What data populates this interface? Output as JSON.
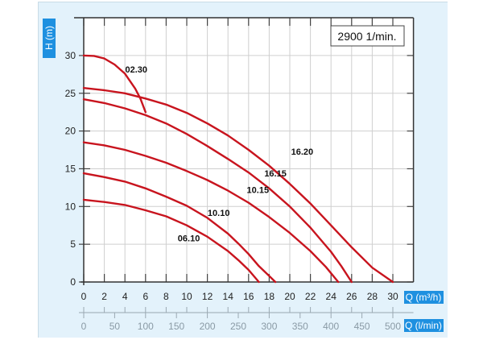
{
  "chart_data": {
    "type": "line",
    "title": "",
    "speed_label": "2900 1/min.",
    "ylabel": "H (m)",
    "xlabel": "Q (m³/h)",
    "x2label": "Q (l/min)",
    "xlim": [
      0,
      32
    ],
    "ylim": [
      0,
      35
    ],
    "x_ticks": [
      0,
      2,
      4,
      6,
      8,
      10,
      12,
      14,
      16,
      18,
      20,
      22,
      24,
      26,
      28,
      30
    ],
    "y_ticks": [
      0,
      5,
      10,
      15,
      20,
      25,
      30
    ],
    "x2_ticks": [
      0,
      50,
      100,
      150,
      200,
      250,
      300,
      350,
      400,
      450,
      500
    ],
    "grid": true,
    "line_color": "#c8141e",
    "series": [
      {
        "name": "02.30",
        "label_at": [
          5.1,
          28.2
        ],
        "points": [
          [
            0,
            30
          ],
          [
            1,
            29.95
          ],
          [
            2,
            29.6
          ],
          [
            3,
            28.8
          ],
          [
            4,
            27.6
          ],
          [
            5,
            25.6
          ],
          [
            5.5,
            24.3
          ],
          [
            6,
            22.5
          ]
        ]
      },
      {
        "name": "16.20",
        "label_at": [
          21.2,
          17.3
        ],
        "points": [
          [
            0,
            25.7
          ],
          [
            2,
            25.4
          ],
          [
            4,
            25
          ],
          [
            6,
            24.3
          ],
          [
            8,
            23.5
          ],
          [
            10,
            22.4
          ],
          [
            12,
            21
          ],
          [
            14,
            19.4
          ],
          [
            16,
            17.5
          ],
          [
            18,
            15.4
          ],
          [
            20,
            13
          ],
          [
            22,
            10.4
          ],
          [
            24,
            7.5
          ],
          [
            26,
            4.6
          ],
          [
            28,
            1.9
          ],
          [
            30,
            0
          ]
        ]
      },
      {
        "name": "16.15",
        "label_at": [
          18.6,
          14.4
        ],
        "points": [
          [
            0,
            24.2
          ],
          [
            2,
            23.7
          ],
          [
            4,
            23
          ],
          [
            6,
            22.1
          ],
          [
            8,
            21
          ],
          [
            10,
            19.6
          ],
          [
            12,
            18
          ],
          [
            14,
            16.3
          ],
          [
            16,
            14.5
          ],
          [
            18,
            12.4
          ],
          [
            20,
            10
          ],
          [
            22,
            7.2
          ],
          [
            24,
            4
          ],
          [
            25,
            2.1
          ],
          [
            26,
            0
          ]
        ]
      },
      {
        "name": "10.15",
        "label_at": [
          16.9,
          12.2
        ],
        "points": [
          [
            0,
            18.5
          ],
          [
            2,
            18.1
          ],
          [
            4,
            17.5
          ],
          [
            6,
            16.7
          ],
          [
            8,
            15.8
          ],
          [
            10,
            14.7
          ],
          [
            12,
            13.5
          ],
          [
            14,
            12.1
          ],
          [
            16,
            10.5
          ],
          [
            18,
            8.6
          ],
          [
            20,
            6.5
          ],
          [
            22,
            4.1
          ],
          [
            23.5,
            2
          ],
          [
            24.7,
            0
          ]
        ]
      },
      {
        "name": "10.10",
        "label_at": [
          13.1,
          9.2
        ],
        "points": [
          [
            0,
            14.4
          ],
          [
            2,
            13.9
          ],
          [
            4,
            13.3
          ],
          [
            6,
            12.4
          ],
          [
            8,
            11.3
          ],
          [
            10,
            10.1
          ],
          [
            12,
            8.5
          ],
          [
            14,
            6.4
          ],
          [
            15,
            5.1
          ],
          [
            16,
            3.7
          ],
          [
            17,
            2.1
          ],
          [
            18,
            0.8
          ],
          [
            18.6,
            0
          ]
        ]
      },
      {
        "name": "06.10",
        "label_at": [
          10.2,
          5.8
        ],
        "points": [
          [
            0,
            10.9
          ],
          [
            2,
            10.6
          ],
          [
            4,
            10.2
          ],
          [
            6,
            9.5
          ],
          [
            8,
            8.7
          ],
          [
            10,
            7.5
          ],
          [
            12,
            6
          ],
          [
            14,
            4.1
          ],
          [
            15,
            2.9
          ],
          [
            16,
            1.6
          ],
          [
            17,
            0
          ]
        ]
      }
    ]
  }
}
